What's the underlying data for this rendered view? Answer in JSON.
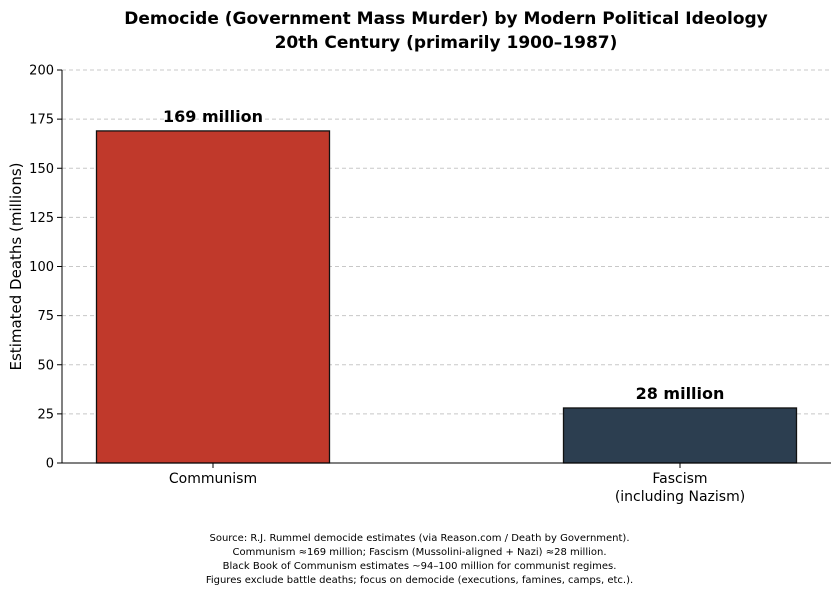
{
  "chart_data": {
    "type": "bar",
    "title": [
      "Democide (Government Mass Murder) by Modern Political Ideology",
      "20th Century (primarily 1900–1987)"
    ],
    "xlabel": "",
    "ylabel": "Estimated Deaths (millions)",
    "ylim": [
      0,
      200
    ],
    "yticks": [
      0,
      25,
      50,
      75,
      100,
      125,
      150,
      175,
      200
    ],
    "grid": true,
    "categories": [
      [
        "Communism"
      ],
      [
        "Fascism",
        "(including Nazism)"
      ]
    ],
    "values": [
      169,
      28
    ],
    "data_labels": [
      "169 million",
      "28 million"
    ],
    "colors": [
      "#c0392b",
      "#2c3e50"
    ]
  },
  "footnote": [
    "Source: R.J. Rummel democide estimates (via Reason.com / Death by Government).",
    "Communism ≈169 million; Fascism (Mussolini-aligned + Nazi) ≈28 million.",
    "Black Book of Communism estimates ~94–100 million for communist regimes.",
    "Figures exclude battle deaths; focus on democide (executions, famines, camps, etc.)."
  ]
}
